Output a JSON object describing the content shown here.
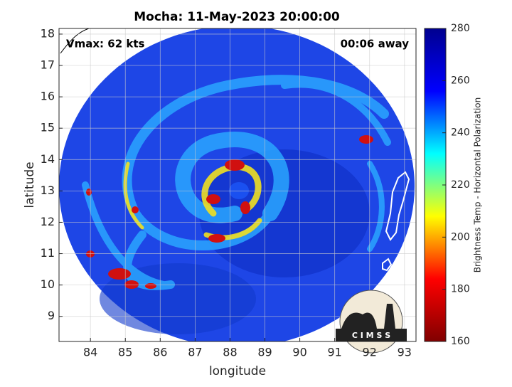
{
  "chart_data": {
    "type": "image",
    "title": "Mocha: 11-May-2023 20:00:00",
    "annotations": [
      "Vmax: 62 kts",
      "00:06 away"
    ],
    "x_label": "longitude",
    "y_label": "latitude",
    "xlim": [
      83.1,
      93.33
    ],
    "xticks": [
      84,
      85,
      86,
      87,
      88,
      89,
      90,
      91,
      92,
      93
    ],
    "ylim": [
      8.2,
      18.18
    ],
    "yticks": [
      9,
      10,
      11,
      12,
      13,
      14,
      15,
      16,
      17,
      18
    ],
    "grid": true,
    "colorbar": {
      "label": "Brightness Temp - Horizontal Polarization",
      "lim": [
        160,
        280
      ],
      "ticks": [
        160,
        180,
        200,
        220,
        240,
        260,
        280
      ],
      "colormap": [
        "#800000",
        "#ff0000",
        "#ffff00",
        "#00ffff",
        "#0000ff",
        "#00008f"
      ]
    },
    "logo": "C I M S S"
  }
}
